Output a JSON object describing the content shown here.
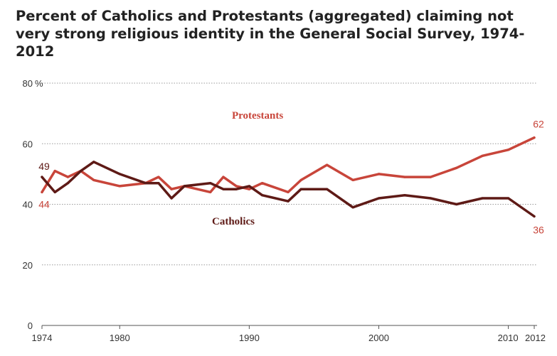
{
  "chart_data": {
    "type": "line",
    "title": "Percent of Catholics and Protestants (aggregated) claiming not very strong religious identity in the General Social Survey, 1974-2012",
    "ylim": [
      0,
      80
    ],
    "xlim": [
      1974,
      2012
    ],
    "yticks": [
      0,
      20,
      40,
      60,
      80
    ],
    "ytick_labels": [
      "0",
      "20",
      "40",
      "60",
      "80"
    ],
    "y_unit": "%",
    "xticks": [
      1974,
      1980,
      1990,
      2000,
      2010,
      2012
    ],
    "xtick_labels": [
      "1974",
      "1980",
      "1990",
      "2000",
      "2010",
      "2012"
    ],
    "grid": true,
    "colors": {
      "Protestants": "#c8453a",
      "Catholics": "#5e1a16"
    },
    "series": [
      {
        "name": "Protestants",
        "x": [
          1974,
          1975,
          1976,
          1977,
          1978,
          1980,
          1982,
          1983,
          1984,
          1985,
          1987,
          1988,
          1989,
          1990,
          1991,
          1993,
          1994,
          1996,
          1998,
          2000,
          2002,
          2004,
          2006,
          2008,
          2010,
          2012
        ],
        "values": [
          44,
          51,
          49,
          51,
          48,
          46,
          47,
          49,
          45,
          46,
          44,
          49,
          46,
          45,
          47,
          44,
          48,
          53,
          48,
          50,
          49,
          49,
          52,
          56,
          58,
          62
        ]
      },
      {
        "name": "Catholics",
        "x": [
          1974,
          1975,
          1976,
          1977,
          1978,
          1980,
          1982,
          1983,
          1984,
          1985,
          1987,
          1988,
          1989,
          1990,
          1991,
          1993,
          1994,
          1996,
          1998,
          2000,
          2002,
          2004,
          2006,
          2008,
          2010,
          2012
        ],
        "values": [
          49,
          44,
          47,
          51,
          54,
          50,
          47,
          47,
          42,
          46,
          47,
          45,
          45,
          46,
          43,
          41,
          45,
          45,
          39,
          42,
          43,
          42,
          40,
          42,
          42,
          36
        ]
      }
    ],
    "annotations": {
      "protestants_label": "Protestants",
      "catholics_label": "Catholics",
      "protestants_start": "44",
      "catholics_start": "49",
      "protestants_end": "62",
      "catholics_end": "36"
    }
  }
}
